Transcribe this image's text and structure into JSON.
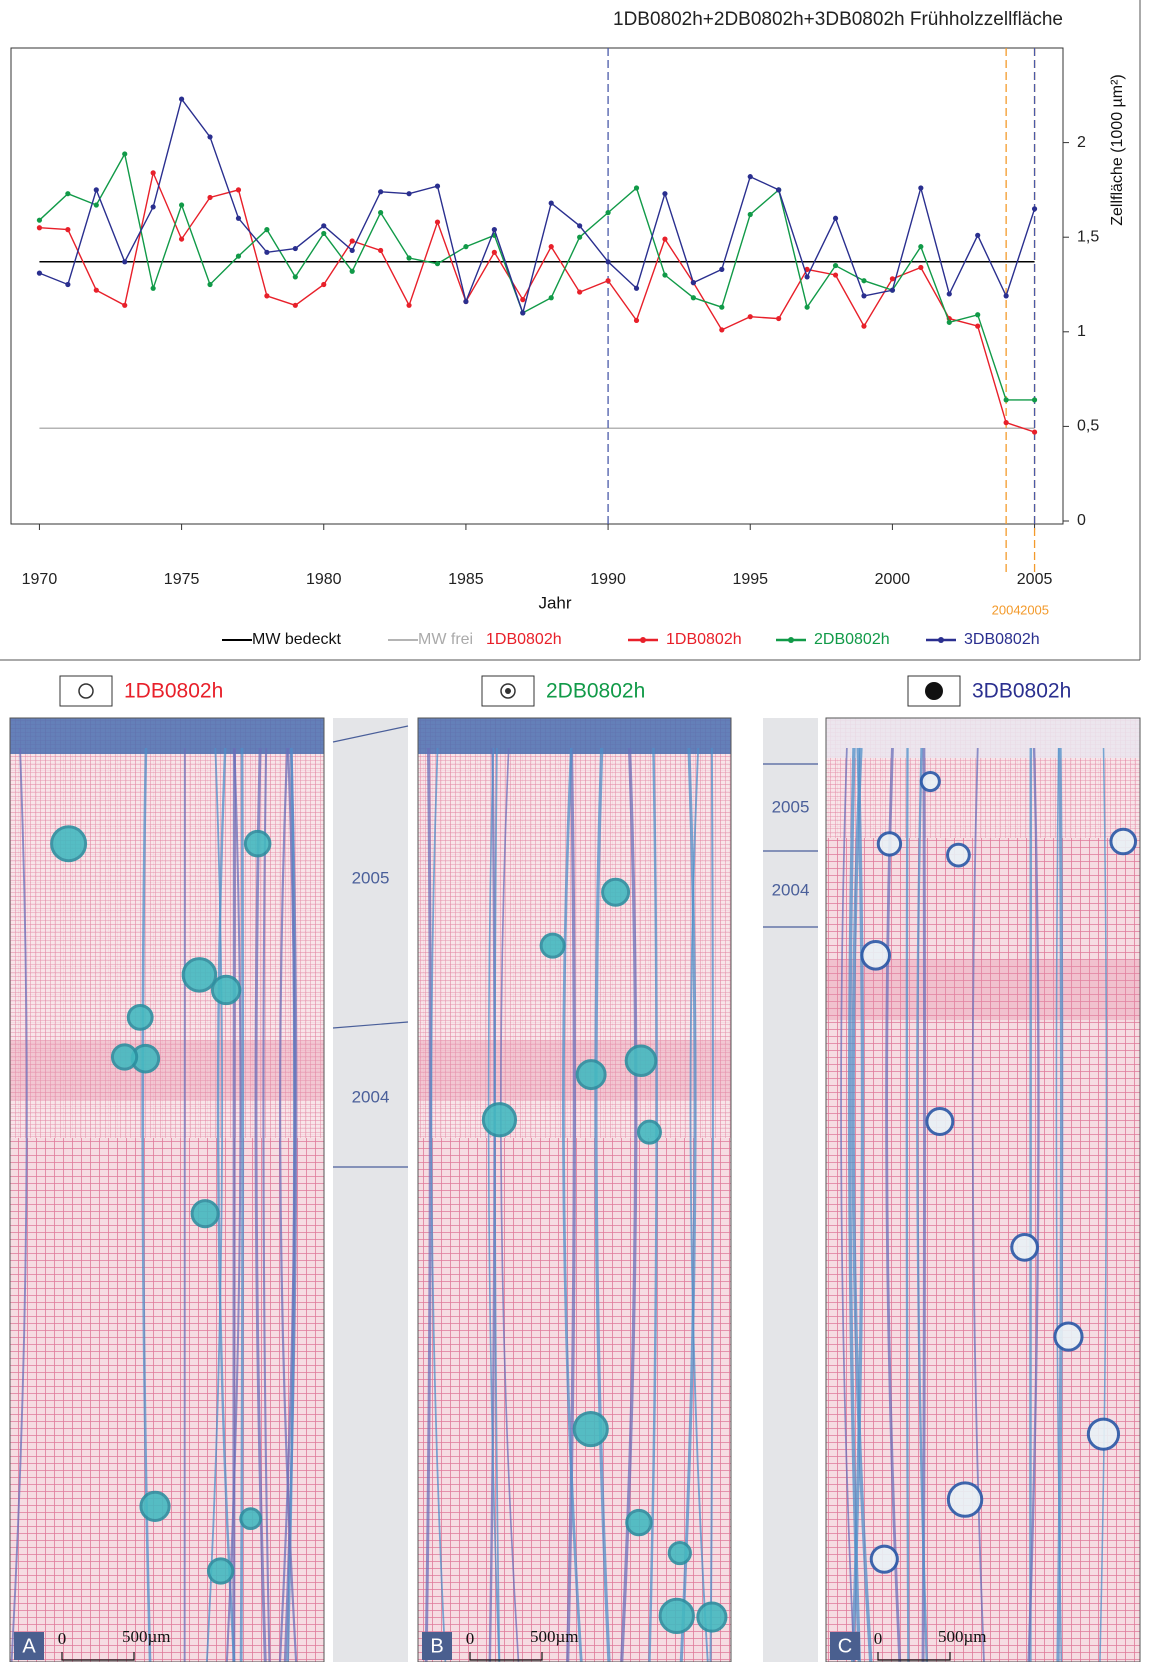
{
  "chart_data": {
    "type": "line",
    "title": "1DB0802h+2DB0802h+3DB0802h Frühholzzellfläche",
    "x_label": "Jahr",
    "y_label": "Zellfläche  (1000 µm²)",
    "x": [
      1970,
      1971,
      1972,
      1973,
      1974,
      1975,
      1976,
      1977,
      1978,
      1979,
      1980,
      1981,
      1982,
      1983,
      1984,
      1985,
      1986,
      1987,
      1988,
      1989,
      1990,
      1991,
      1992,
      1993,
      1994,
      1995,
      1996,
      1997,
      1998,
      1999,
      2000,
      2001,
      2002,
      2003,
      2004,
      2005
    ],
    "series": [
      {
        "name": "1DB0802h",
        "color": "#e8202a",
        "values": [
          1.55,
          1.54,
          1.22,
          1.14,
          1.84,
          1.49,
          1.71,
          1.75,
          1.19,
          1.14,
          1.25,
          1.48,
          1.43,
          1.14,
          1.58,
          1.16,
          1.42,
          1.17,
          1.45,
          1.21,
          1.27,
          1.06,
          1.49,
          1.26,
          1.01,
          1.08,
          1.07,
          1.33,
          1.3,
          1.03,
          1.28,
          1.34,
          1.07,
          1.03,
          0.52,
          0.47
        ]
      },
      {
        "name": "2DB0802h",
        "color": "#119a48",
        "values": [
          1.59,
          1.73,
          1.67,
          1.94,
          1.23,
          1.67,
          1.25,
          1.4,
          1.54,
          1.29,
          1.52,
          1.32,
          1.63,
          1.39,
          1.36,
          1.45,
          1.51,
          1.1,
          1.18,
          1.5,
          1.63,
          1.76,
          1.3,
          1.18,
          1.13,
          1.62,
          1.75,
          1.13,
          1.35,
          1.27,
          1.22,
          1.45,
          1.05,
          1.09,
          0.64,
          0.64
        ]
      },
      {
        "name": "3DB0802h",
        "color": "#2a2f8f",
        "values": [
          1.31,
          1.25,
          1.75,
          1.37,
          1.66,
          2.23,
          2.03,
          1.6,
          1.42,
          1.44,
          1.56,
          1.43,
          1.74,
          1.73,
          1.77,
          1.16,
          1.54,
          1.1,
          1.68,
          1.56,
          1.37,
          1.23,
          1.73,
          1.26,
          1.33,
          1.82,
          1.75,
          1.29,
          1.6,
          1.19,
          1.22,
          1.76,
          1.2,
          1.51,
          1.19,
          1.65
        ]
      }
    ],
    "reference_lines": [
      {
        "name": "MW bedeckt",
        "color": "#000000",
        "value": 1.37
      },
      {
        "name": "MW frei",
        "color": "#b4b4b4",
        "value": 0.49
      }
    ],
    "legend_extra": {
      "text": "1DB0802h",
      "color": "#e8202a"
    },
    "vlines": [
      {
        "x": 1990,
        "color": "#4a5aa8"
      },
      {
        "x": 2004,
        "color": "#f39a2b",
        "show_label": true
      },
      {
        "x": 2005,
        "color": "#f39a2b",
        "show_label": true
      },
      {
        "x": 2005,
        "color": "#4a5aa8"
      }
    ],
    "xlim": [
      1969,
      2006
    ],
    "ylim": [
      0,
      2.5
    ],
    "xticks": [
      1970,
      1975,
      1980,
      1985,
      1990,
      1995,
      2000,
      2005
    ],
    "yticks": [
      0,
      {
        "value": 0.5,
        "label": "0,5"
      },
      1,
      {
        "value": 1.5,
        "label": "1,5"
      },
      2
    ],
    "y_axis_side": "right",
    "grid": false
  },
  "panels": [
    {
      "heading": "1DB0802h",
      "color": "#e8202a",
      "letter": "A",
      "scale_start": "0",
      "scale_label": "500µm"
    },
    {
      "heading": "2DB0802h",
      "color": "#119a48",
      "letter": "B",
      "scale_start": "0",
      "scale_label": "500µm"
    },
    {
      "heading": "3DB0802h",
      "color": "#2a2f8f",
      "letter": "C",
      "scale_start": "0",
      "scale_label": "500µm"
    }
  ],
  "year_strips": [
    {
      "labels": [
        "2005",
        "2004"
      ]
    },
    {
      "labels": [
        "2005",
        "2004"
      ]
    }
  ]
}
